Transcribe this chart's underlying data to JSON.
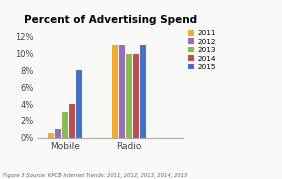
{
  "title": "Percent of Advertising Spend",
  "categories": [
    "Mobile",
    "Radio"
  ],
  "years": [
    "2011",
    "2012",
    "2013",
    "2014",
    "2015"
  ],
  "values": {
    "Mobile": [
      0.005,
      0.01,
      0.03,
      0.04,
      0.08
    ],
    "Radio": [
      0.11,
      0.11,
      0.1,
      0.1,
      0.11
    ]
  },
  "colors": [
    "#f5a833",
    "#9b6db5",
    "#8db954",
    "#c0504d",
    "#4472c4"
  ],
  "ylim": [
    0,
    0.13
  ],
  "yticks": [
    0,
    0.02,
    0.04,
    0.06,
    0.08,
    0.1,
    0.12
  ],
  "ytick_labels": [
    "0%",
    "2%",
    "4%",
    "6%",
    "8%",
    "10%",
    "12%"
  ],
  "caption": "Figure 3 Source: KPCB Internet Trends: 2011, 2012, 2013, 2014, 2015",
  "background_color": "#f9f9f7"
}
